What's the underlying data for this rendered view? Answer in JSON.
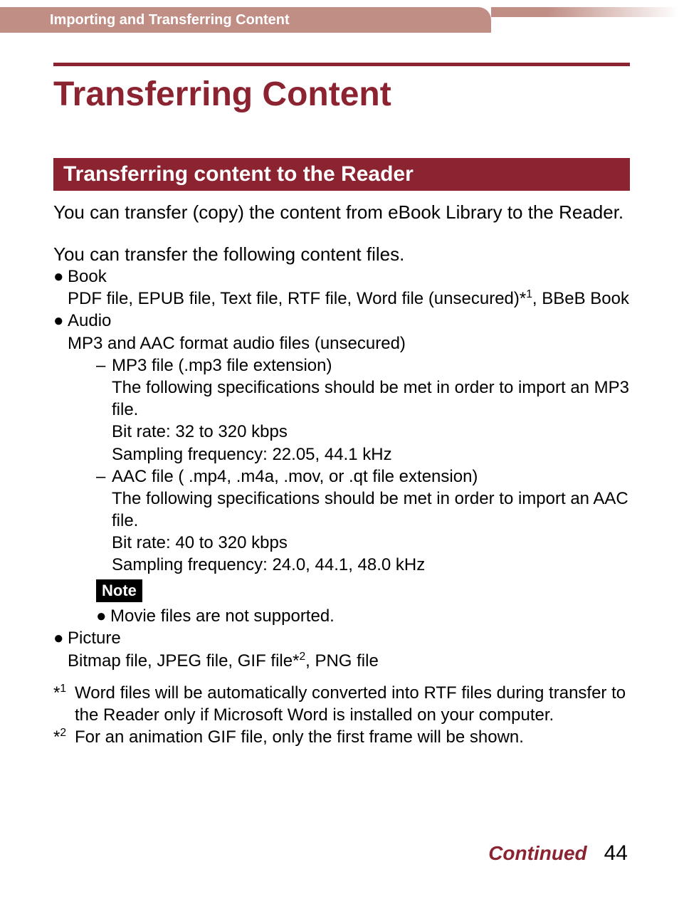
{
  "colors": {
    "accent": "#8b2331",
    "topbar": "#c08e85",
    "text": "#000000",
    "note_bg": "#000000",
    "note_fg": "#ffffff",
    "background": "#ffffff"
  },
  "typography": {
    "title_fontsize": 48,
    "subheader_fontsize": 30,
    "body_fontsize": 26,
    "bullet_fontsize": 24,
    "footer_fontsize": 28
  },
  "breadcrumb": "Importing and Transferring Content",
  "title": "Transferring Content",
  "subheader": "Transferring content to the Reader",
  "intro_para": "You can transfer (copy) the content from eBook Library to the Reader.",
  "files_intro": "You can transfer the following content files.",
  "bullets": {
    "book": {
      "label": "Book",
      "desc_pre": "PDF file, EPUB file, Text file, RTF file, Word file (unsecured)*",
      "desc_sup": "1",
      "desc_post": ", BBeB Book"
    },
    "audio": {
      "label": "Audio",
      "desc": "MP3 and AAC format audio files (unsecured)",
      "mp3": {
        "title": "MP3 file (.mp3 file extension)",
        "spec_intro": "The following specifications should be met in order to import an MP3 file.",
        "bitrate": "Bit rate: 32 to 320 kbps",
        "sampling": "Sampling frequency: 22.05, 44.1 kHz"
      },
      "aac": {
        "title": "AAC file ( .mp4, .m4a, .mov, or .qt file extension)",
        "spec_intro": "The following specifications should be met in order to import an AAC file.",
        "bitrate": "Bit rate: 40 to 320 kbps",
        "sampling": "Sampling frequency: 24.0, 44.1, 48.0 kHz"
      },
      "note_label": "Note",
      "note_text": "Movie files are not supported."
    },
    "picture": {
      "label": "Picture",
      "desc_pre": "Bitmap file, JPEG file, GIF file*",
      "desc_sup": "2",
      "desc_post": ", PNG file"
    }
  },
  "footnotes": {
    "f1": {
      "mark": "1",
      "text": "Word files will be automatically converted into RTF files during transfer to the Reader only if Microsoft Word is installed on your computer."
    },
    "f2": {
      "mark": "2",
      "text": "For an animation GIF file, only the first frame will be shown."
    }
  },
  "footer": {
    "continued": "Continued",
    "page": "44"
  }
}
